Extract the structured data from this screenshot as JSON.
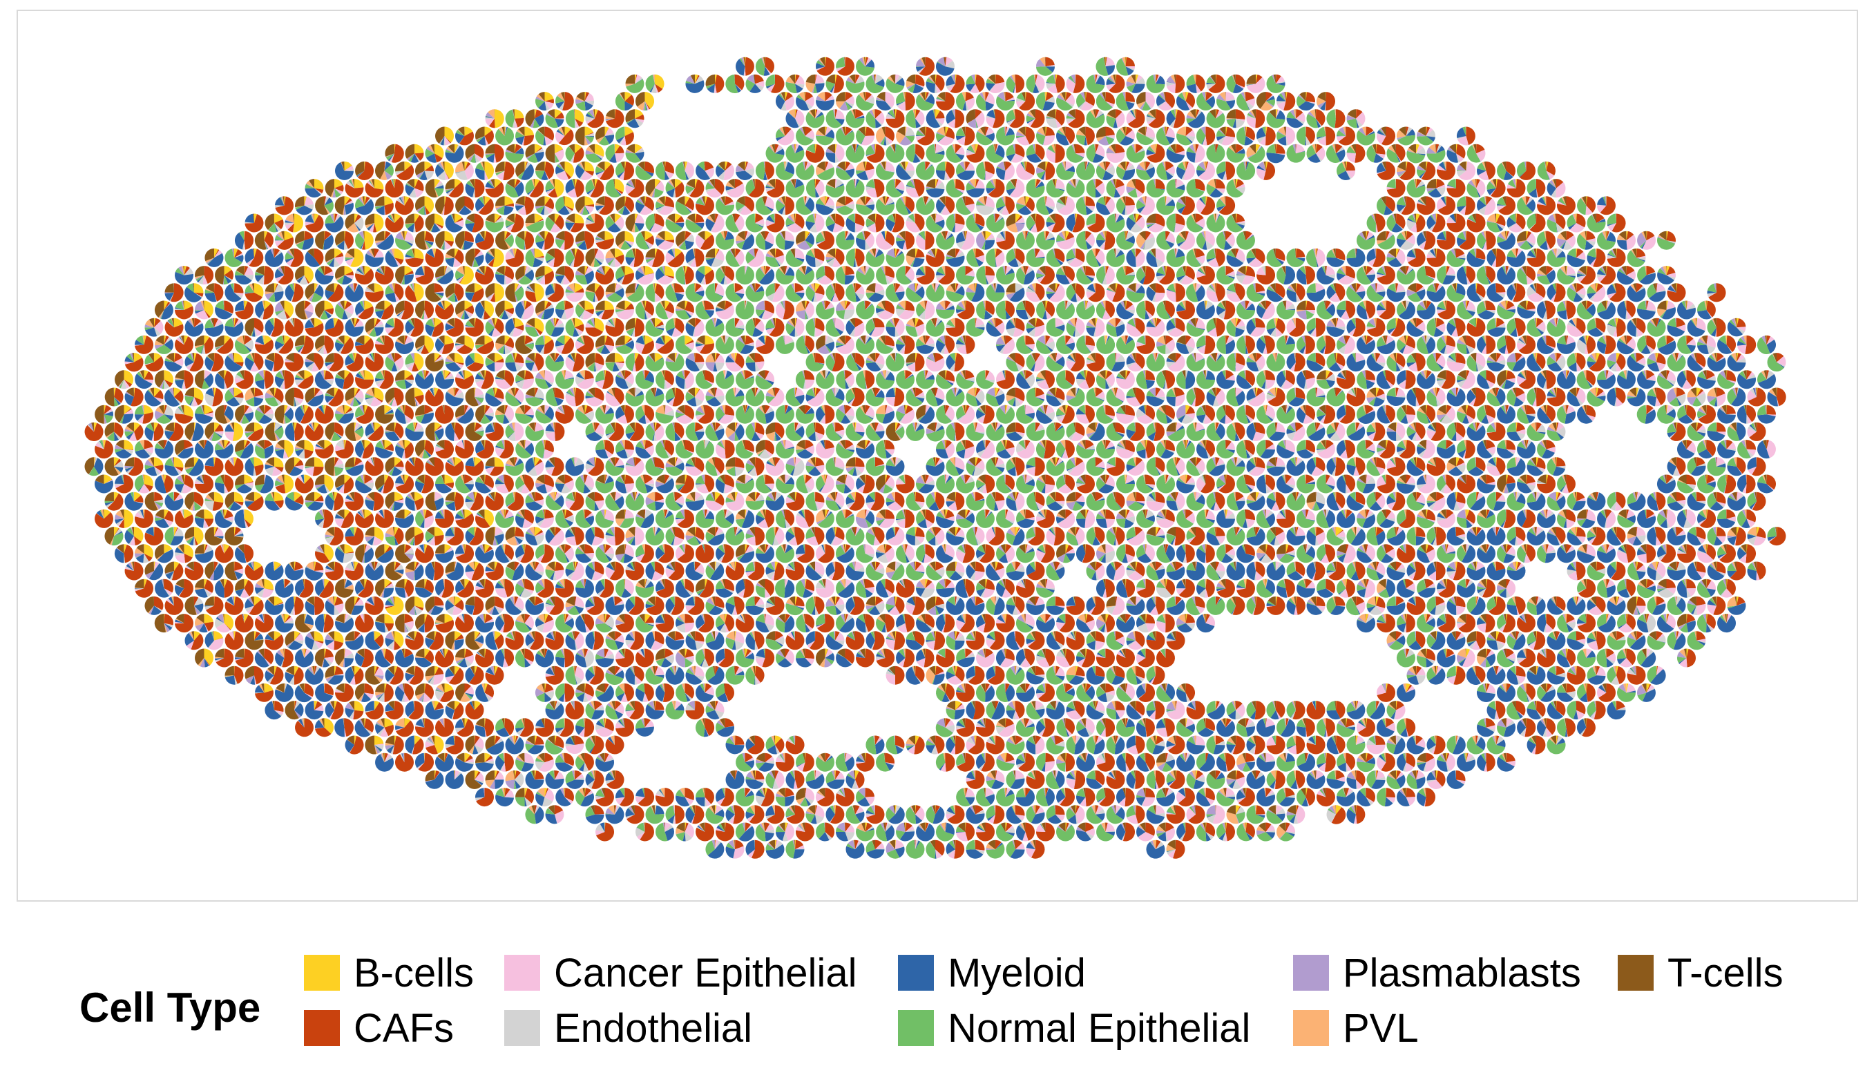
{
  "chart_data": {
    "type": "pie-scatter",
    "title": "",
    "xlabel": "",
    "ylabel": "",
    "grid": false,
    "legend_position": "bottom",
    "legend": {
      "title": "Cell Type",
      "items": [
        {
          "label": "B-cells",
          "color": "#FDD023"
        },
        {
          "label": "CAFs",
          "color": "#C9420E"
        },
        {
          "label": "Cancer Epithelial",
          "color": "#F6C0DF"
        },
        {
          "label": "Endothelial",
          "color": "#D3D3D3"
        },
        {
          "label": "Myeloid",
          "color": "#2E65A8"
        },
        {
          "label": "Normal Epithelial",
          "color": "#71BF66"
        },
        {
          "label": "Plasmablasts",
          "color": "#B19CCF"
        },
        {
          "label": "PVL",
          "color": "#FBB274"
        },
        {
          "label": "T-cells",
          "color": "#8C5A1B"
        }
      ]
    },
    "spot_layout": "hexagonal grid of tissue spots, each spot a pie of cell-type proportions",
    "tissue_regions": [
      {
        "region": "left lobe",
        "dominant": [
          "CAFs",
          "Myeloid",
          "T-cells",
          "B-cells"
        ]
      },
      {
        "region": "upper-left",
        "dominant": [
          "CAFs",
          "Normal Epithelial",
          "B-cells"
        ]
      },
      {
        "region": "center",
        "dominant": [
          "Normal Epithelial",
          "CAFs",
          "Cancer Epithelial"
        ]
      },
      {
        "region": "lower-center",
        "dominant": [
          "CAFs",
          "Myeloid"
        ]
      },
      {
        "region": "right",
        "dominant": [
          "Myeloid",
          "CAFs",
          "Normal Epithelial"
        ]
      }
    ]
  }
}
